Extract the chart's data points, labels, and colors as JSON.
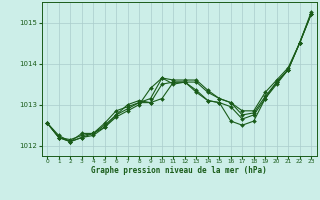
{
  "title": "Graphe pression niveau de la mer (hPa)",
  "background_color": "#cceee8",
  "plot_bg_color": "#cceee8",
  "grid_color": "#aacccc",
  "line_color": "#1a5c1a",
  "xlim": [
    -0.5,
    23.5
  ],
  "ylim": [
    1011.75,
    1015.5
  ],
  "yticks": [
    1012,
    1013,
    1014,
    1015
  ],
  "xticks": [
    0,
    1,
    2,
    3,
    4,
    5,
    6,
    7,
    8,
    9,
    10,
    11,
    12,
    13,
    14,
    15,
    16,
    17,
    18,
    19,
    20,
    21,
    22,
    23
  ],
  "series": [
    [
      1012.55,
      1012.2,
      1012.1,
      1012.2,
      1012.25,
      1012.45,
      1012.7,
      1012.85,
      1013.0,
      1013.4,
      1013.65,
      1013.5,
      1013.55,
      1013.3,
      1013.1,
      1013.05,
      1012.6,
      1012.5,
      1012.6,
      1013.15,
      1013.5,
      1013.85,
      1014.5,
      1015.2
    ],
    [
      1012.55,
      1012.2,
      1012.1,
      1012.2,
      1012.3,
      1012.45,
      1012.75,
      1012.9,
      1013.05,
      1013.05,
      1013.15,
      1013.55,
      1013.55,
      1013.35,
      1013.1,
      1013.05,
      1012.95,
      1012.65,
      1012.75,
      1013.15,
      1013.55,
      1013.85,
      1014.5,
      1015.2
    ],
    [
      1012.55,
      1012.2,
      1012.15,
      1012.25,
      1012.3,
      1012.5,
      1012.75,
      1013.0,
      1013.1,
      1013.05,
      1013.5,
      1013.55,
      1013.55,
      1013.55,
      1013.3,
      1013.15,
      1013.05,
      1012.75,
      1012.8,
      1013.2,
      1013.55,
      1013.85,
      1014.5,
      1015.2
    ],
    [
      1012.55,
      1012.25,
      1012.1,
      1012.3,
      1012.3,
      1012.55,
      1012.85,
      1012.95,
      1013.05,
      1013.15,
      1013.65,
      1013.6,
      1013.6,
      1013.6,
      1013.35,
      1013.15,
      1013.05,
      1012.85,
      1012.85,
      1013.3,
      1013.6,
      1013.9,
      1014.5,
      1015.25
    ]
  ]
}
